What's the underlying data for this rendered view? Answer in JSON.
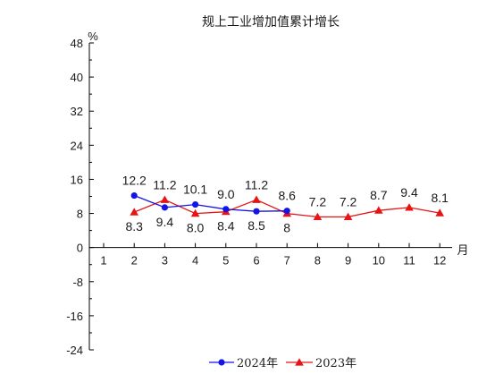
{
  "chart_data": {
    "type": "line",
    "title": "规上工业增加值累计增长",
    "ylabel": "%",
    "xlabel": "月",
    "ylim": [
      -24,
      48
    ],
    "yticks": [
      48,
      40,
      32,
      24,
      16,
      8,
      0,
      -8,
      -16,
      -24
    ],
    "categories": [
      "1",
      "2",
      "3",
      "4",
      "5",
      "6",
      "7",
      "8",
      "9",
      "10",
      "11",
      "12"
    ],
    "legend_position": "bottom",
    "series": [
      {
        "name": "2024年",
        "color": "#1414e6",
        "marker": "circle",
        "x": [
          "2",
          "3",
          "4",
          "5",
          "6",
          "7"
        ],
        "values": [
          12.2,
          9.4,
          10.1,
          9.0,
          8.5,
          8.6
        ],
        "labels": [
          "12.2",
          "9.4",
          "10.1",
          "9.0",
          "8.5",
          "8.6"
        ]
      },
      {
        "name": "2023年",
        "color": "#e61414",
        "marker": "triangle",
        "x": [
          "2",
          "3",
          "4",
          "5",
          "6",
          "7",
          "8",
          "9",
          "10",
          "11",
          "12"
        ],
        "values": [
          8.3,
          11.2,
          8.0,
          8.4,
          11.2,
          8.0,
          7.2,
          7.2,
          8.7,
          9.4,
          8.1
        ],
        "labels": [
          "8.3",
          "11.2",
          "8.0",
          "8.4",
          "11.2",
          "8",
          "7.2",
          "7.2",
          "8.7",
          "9.4",
          "8.1"
        ]
      }
    ]
  }
}
